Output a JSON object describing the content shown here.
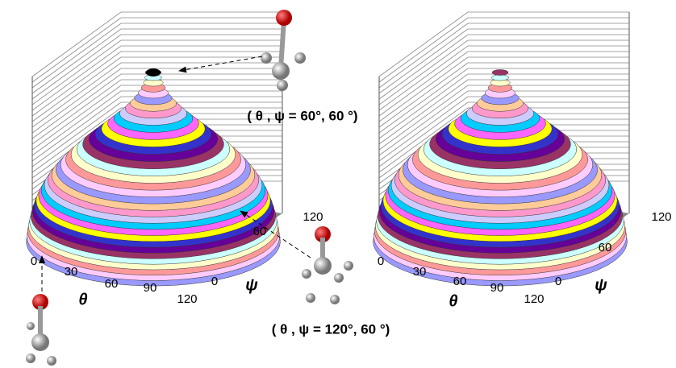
{
  "panels": [
    {
      "theta_label": "θ",
      "psi_label": "ψ",
      "theta_ticks": [
        0,
        30,
        60,
        90,
        120
      ],
      "psi_ticks": [
        0,
        60,
        120
      ]
    },
    {
      "theta_label": "θ",
      "psi_label": "ψ",
      "theta_ticks": [
        0,
        30,
        60,
        90,
        120
      ],
      "psi_ticks": [
        0,
        60,
        120
      ]
    }
  ],
  "annotations": {
    "top": "( θ , ψ = 60°, 60 °)",
    "bottom": "( θ , ψ = 120°, 60 °)"
  }
}
